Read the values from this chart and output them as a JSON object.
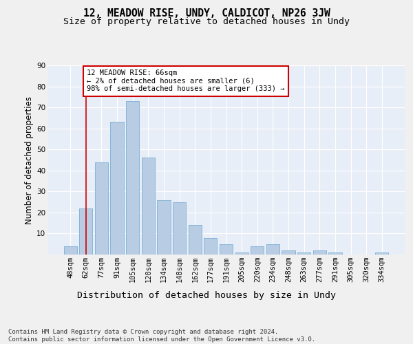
{
  "title": "12, MEADOW RISE, UNDY, CALDICOT, NP26 3JW",
  "subtitle": "Size of property relative to detached houses in Undy",
  "xlabel": "Distribution of detached houses by size in Undy",
  "ylabel": "Number of detached properties",
  "categories": [
    "48sqm",
    "62sqm",
    "77sqm",
    "91sqm",
    "105sqm",
    "120sqm",
    "134sqm",
    "148sqm",
    "162sqm",
    "177sqm",
    "191sqm",
    "205sqm",
    "220sqm",
    "234sqm",
    "248sqm",
    "263sqm",
    "277sqm",
    "291sqm",
    "305sqm",
    "320sqm",
    "334sqm"
  ],
  "values": [
    4,
    22,
    44,
    63,
    73,
    46,
    26,
    25,
    14,
    8,
    5,
    1,
    4,
    5,
    2,
    1,
    2,
    1,
    0,
    0,
    1
  ],
  "bar_color": "#b8cce4",
  "bar_edge_color": "#7bafd4",
  "bg_color": "#e8eef7",
  "grid_color": "#ffffff",
  "fig_bg_color": "#f0f0f0",
  "annotation_line1": "12 MEADOW RISE: 66sqm",
  "annotation_line2": "← 2% of detached houses are smaller (6)",
  "annotation_line3": "98% of semi-detached houses are larger (333) →",
  "annotation_box_color": "#ffffff",
  "annotation_box_edge_color": "#cc0000",
  "vline_x": 1.0,
  "vline_color": "#cc0000",
  "ylim": [
    0,
    90
  ],
  "yticks": [
    0,
    10,
    20,
    30,
    40,
    50,
    60,
    70,
    80,
    90
  ],
  "footer_line1": "Contains HM Land Registry data © Crown copyright and database right 2024.",
  "footer_line2": "Contains public sector information licensed under the Open Government Licence v3.0.",
  "title_fontsize": 10.5,
  "subtitle_fontsize": 9.5,
  "xlabel_fontsize": 9.5,
  "ylabel_fontsize": 8.5,
  "tick_fontsize": 7.5,
  "annotation_fontsize": 7.5,
  "footer_fontsize": 6.5
}
